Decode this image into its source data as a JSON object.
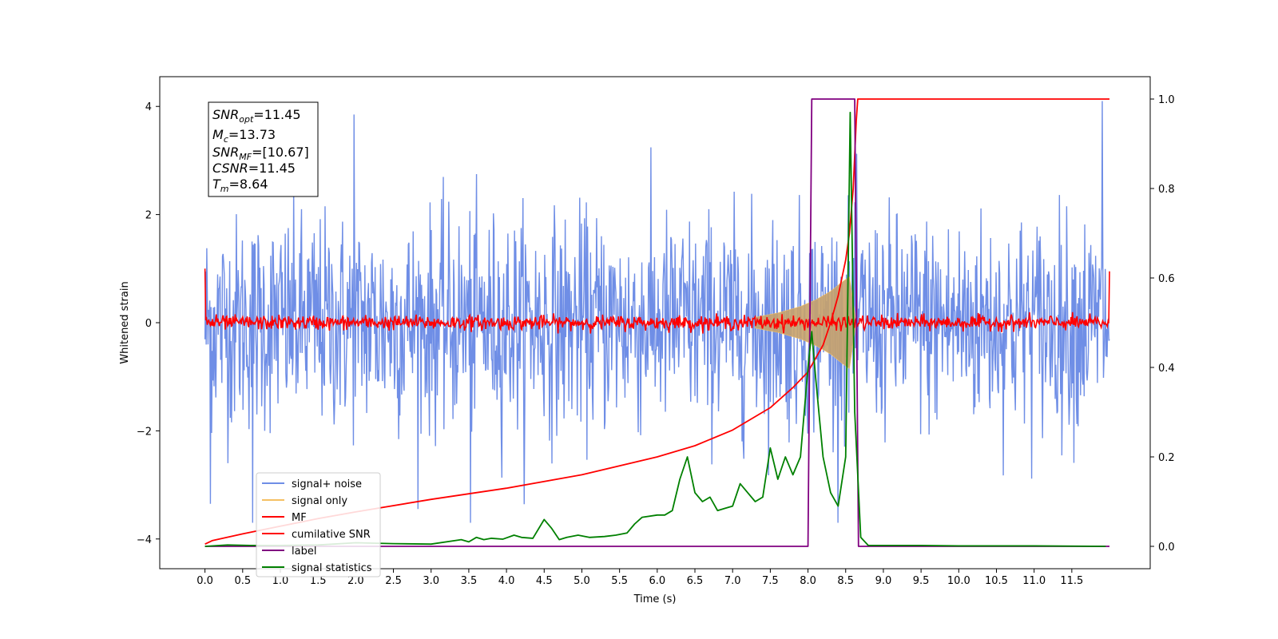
{
  "chart_data": {
    "type": "line",
    "xlabel": "Time (s)",
    "ylabel": "Whitened strain",
    "xlim": [
      -0.6,
      12.54
    ],
    "ylim": [
      -4.55,
      4.55
    ],
    "y2lim": [
      -0.05,
      1.05
    ],
    "x_ticks": [
      "0.0",
      "0.5",
      "1.0",
      "1.5",
      "2.0",
      "2.5",
      "3.0",
      "3.5",
      "4.0",
      "4.5",
      "5.0",
      "5.5",
      "6.0",
      "6.5",
      "7.0",
      "7.5",
      "8.0",
      "8.5",
      "9.0",
      "9.5",
      "10.0",
      "10.5",
      "11.0",
      "11.5"
    ],
    "y_ticks": [
      "−4",
      "−2",
      "0",
      "2",
      "4"
    ],
    "y2_ticks": [
      "0.0",
      "0.2",
      "0.4",
      "0.6",
      "0.8",
      "1.0"
    ],
    "info_box": [
      {
        "main": "SNR",
        "sub": "opt",
        "value": "=11.45"
      },
      {
        "main": "M",
        "sub": "c",
        "value": "=13.73"
      },
      {
        "main": "SNR",
        "sub": "MF",
        "value": "=[10.67]"
      },
      {
        "main": "CSNR",
        "sub": "",
        "value": "=11.45"
      },
      {
        "main": "T",
        "sub": "m",
        "value": "=8.64"
      }
    ],
    "legend": {
      "position": "lower-left",
      "entries": [
        "signal+ noise",
        "signal only",
        "MF",
        "cumilative SNR",
        "label",
        "signal statistics"
      ]
    },
    "colors": {
      "signal_noise": "#6f8ee6",
      "signal_only": "#f5c063",
      "mf": "#ff0000",
      "cumulative_snr": "#ff0000",
      "label": "#800080",
      "signal_statistics": "#008000",
      "signal_fill": "#c8a26a"
    },
    "series": [
      {
        "name": "signal+ noise",
        "axis": "left",
        "style": "noise band",
        "x_range": [
          0,
          12.0
        ],
        "envelope_typical": [
          -1.8,
          1.8
        ],
        "envelope_max": [
          -3.7,
          4.1
        ],
        "outliers": [
          {
            "x": 0.07,
            "y": -3.35
          },
          {
            "x": 0.63,
            "y": -3.7
          },
          {
            "x": 1.98,
            "y": 3.85
          },
          {
            "x": 3.52,
            "y": -4.05
          },
          {
            "x": 11.9,
            "y": 4.15
          }
        ]
      },
      {
        "name": "signal only",
        "axis": "left",
        "style": "chirp",
        "x": [
          7.3,
          7.6,
          7.9,
          8.1,
          8.3,
          8.45,
          8.55,
          8.64
        ],
        "amplitude": [
          0.1,
          0.18,
          0.3,
          0.42,
          0.58,
          0.75,
          0.85,
          0.0
        ]
      },
      {
        "name": "MF",
        "axis": "left",
        "style": "noise band",
        "x_range": [
          0,
          12.0
        ],
        "edge_values": [
          1.0,
          0.95
        ],
        "envelope_typical": [
          -0.12,
          0.12
        ],
        "envelope_max": [
          -0.2,
          0.3
        ]
      },
      {
        "name": "cumilative SNR",
        "axis": "right",
        "x": [
          0.0,
          0.1,
          0.5,
          1.0,
          1.5,
          2.0,
          3.0,
          4.0,
          5.0,
          6.0,
          6.5,
          7.0,
          7.5,
          7.8,
          8.0,
          8.2,
          8.3,
          8.4,
          8.45,
          8.5,
          8.55,
          8.6,
          8.64,
          8.66,
          8.7,
          9.0,
          10.0,
          11.0,
          12.0
        ],
        "values": [
          0.005,
          0.013,
          0.028,
          0.045,
          0.062,
          0.077,
          0.105,
          0.13,
          0.16,
          0.2,
          0.225,
          0.26,
          0.31,
          0.355,
          0.39,
          0.45,
          0.5,
          0.56,
          0.6,
          0.64,
          0.7,
          0.8,
          0.95,
          1.0,
          1.0,
          1.0,
          1.0,
          1.0,
          1.0
        ]
      },
      {
        "name": "label",
        "axis": "right",
        "x": [
          0.0,
          8.0,
          8.05,
          8.62,
          8.67,
          12.0
        ],
        "values": [
          0.0,
          0.0,
          1.0,
          1.0,
          0.0,
          0.0
        ]
      },
      {
        "name": "signal statistics",
        "axis": "right",
        "x": [
          0.0,
          0.3,
          0.6,
          1.0,
          1.5,
          2.0,
          2.5,
          3.0,
          3.4,
          3.5,
          3.6,
          3.7,
          3.8,
          3.95,
          4.1,
          4.2,
          4.35,
          4.5,
          4.6,
          4.7,
          4.8,
          4.95,
          5.1,
          5.3,
          5.45,
          5.6,
          5.7,
          5.8,
          6.0,
          6.1,
          6.2,
          6.3,
          6.4,
          6.5,
          6.6,
          6.7,
          6.8,
          6.9,
          7.0,
          7.1,
          7.2,
          7.3,
          7.4,
          7.5,
          7.6,
          7.7,
          7.75,
          7.8,
          7.9,
          8.0,
          8.05,
          8.1,
          8.2,
          8.3,
          8.4,
          8.5,
          8.56,
          8.62,
          8.7,
          8.8,
          9.0,
          9.5,
          10.0,
          11.0,
          11.95
        ],
        "values": [
          0.0,
          0.003,
          0.002,
          0.002,
          0.003,
          0.008,
          0.006,
          0.005,
          0.015,
          0.01,
          0.02,
          0.015,
          0.018,
          0.016,
          0.025,
          0.02,
          0.018,
          0.06,
          0.04,
          0.015,
          0.02,
          0.025,
          0.02,
          0.022,
          0.025,
          0.03,
          0.05,
          0.065,
          0.07,
          0.07,
          0.08,
          0.15,
          0.2,
          0.12,
          0.1,
          0.11,
          0.08,
          0.085,
          0.09,
          0.14,
          0.12,
          0.1,
          0.11,
          0.22,
          0.15,
          0.2,
          0.18,
          0.16,
          0.2,
          0.4,
          0.48,
          0.38,
          0.2,
          0.12,
          0.09,
          0.2,
          0.97,
          0.3,
          0.02,
          0.002,
          0.002,
          0.002,
          0.001,
          0.001,
          0.0
        ]
      }
    ]
  }
}
